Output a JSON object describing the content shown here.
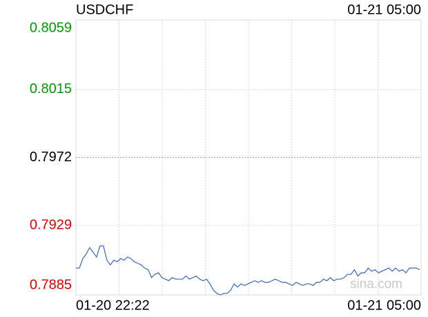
{
  "chart_data": {
    "type": "line",
    "title": "USDCHF",
    "timestamp": "01-21 05:00",
    "watermark": "sina.com",
    "x_labels": [
      "01-20 22:22",
      "01-21 05:00"
    ],
    "x_gridlines": 8,
    "ylim": [
      0.7885,
      0.8059
    ],
    "yticks": [
      0.8059,
      0.8015,
      0.7972,
      0.7929,
      0.7885
    ],
    "ytick_colors": [
      "#009900",
      "#009900",
      "#000000",
      "#dd0000",
      "#dd0000"
    ],
    "grid": true,
    "series": [
      {
        "name": "USDCHF",
        "color": "#3a66b8",
        "values": [
          0.7902,
          0.7902,
          0.7908,
          0.7911,
          0.7915,
          0.7912,
          0.7909,
          0.7916,
          0.7916,
          0.7907,
          0.7904,
          0.7907,
          0.7906,
          0.7908,
          0.7907,
          0.7909,
          0.7908,
          0.7906,
          0.7905,
          0.7904,
          0.7902,
          0.7901,
          0.7896,
          0.7898,
          0.7899,
          0.7896,
          0.7895,
          0.7894,
          0.7896,
          0.7895,
          0.7895,
          0.7895,
          0.7897,
          0.7895,
          0.7896,
          0.7897,
          0.7895,
          0.7894,
          0.7895,
          0.7892,
          0.7888,
          0.7886,
          0.7885,
          0.7886,
          0.7886,
          0.7888,
          0.7892,
          0.789,
          0.7892,
          0.7891,
          0.7892,
          0.7893,
          0.7894,
          0.7893,
          0.7894,
          0.7893,
          0.7893,
          0.7894,
          0.7895,
          0.7894,
          0.7893,
          0.7893,
          0.7892,
          0.7891,
          0.7893,
          0.7892,
          0.7891,
          0.7892,
          0.7892,
          0.7891,
          0.7893,
          0.7893,
          0.7895,
          0.7894,
          0.7896,
          0.7894,
          0.7895,
          0.7895,
          0.7896,
          0.7898,
          0.7898,
          0.7901,
          0.7897,
          0.7899,
          0.7899,
          0.7902,
          0.79,
          0.7901,
          0.7899,
          0.79,
          0.7901,
          0.7902,
          0.79,
          0.7902,
          0.79,
          0.7901,
          0.7899,
          0.7902,
          0.7902,
          0.7902,
          0.7901
        ]
      }
    ]
  }
}
